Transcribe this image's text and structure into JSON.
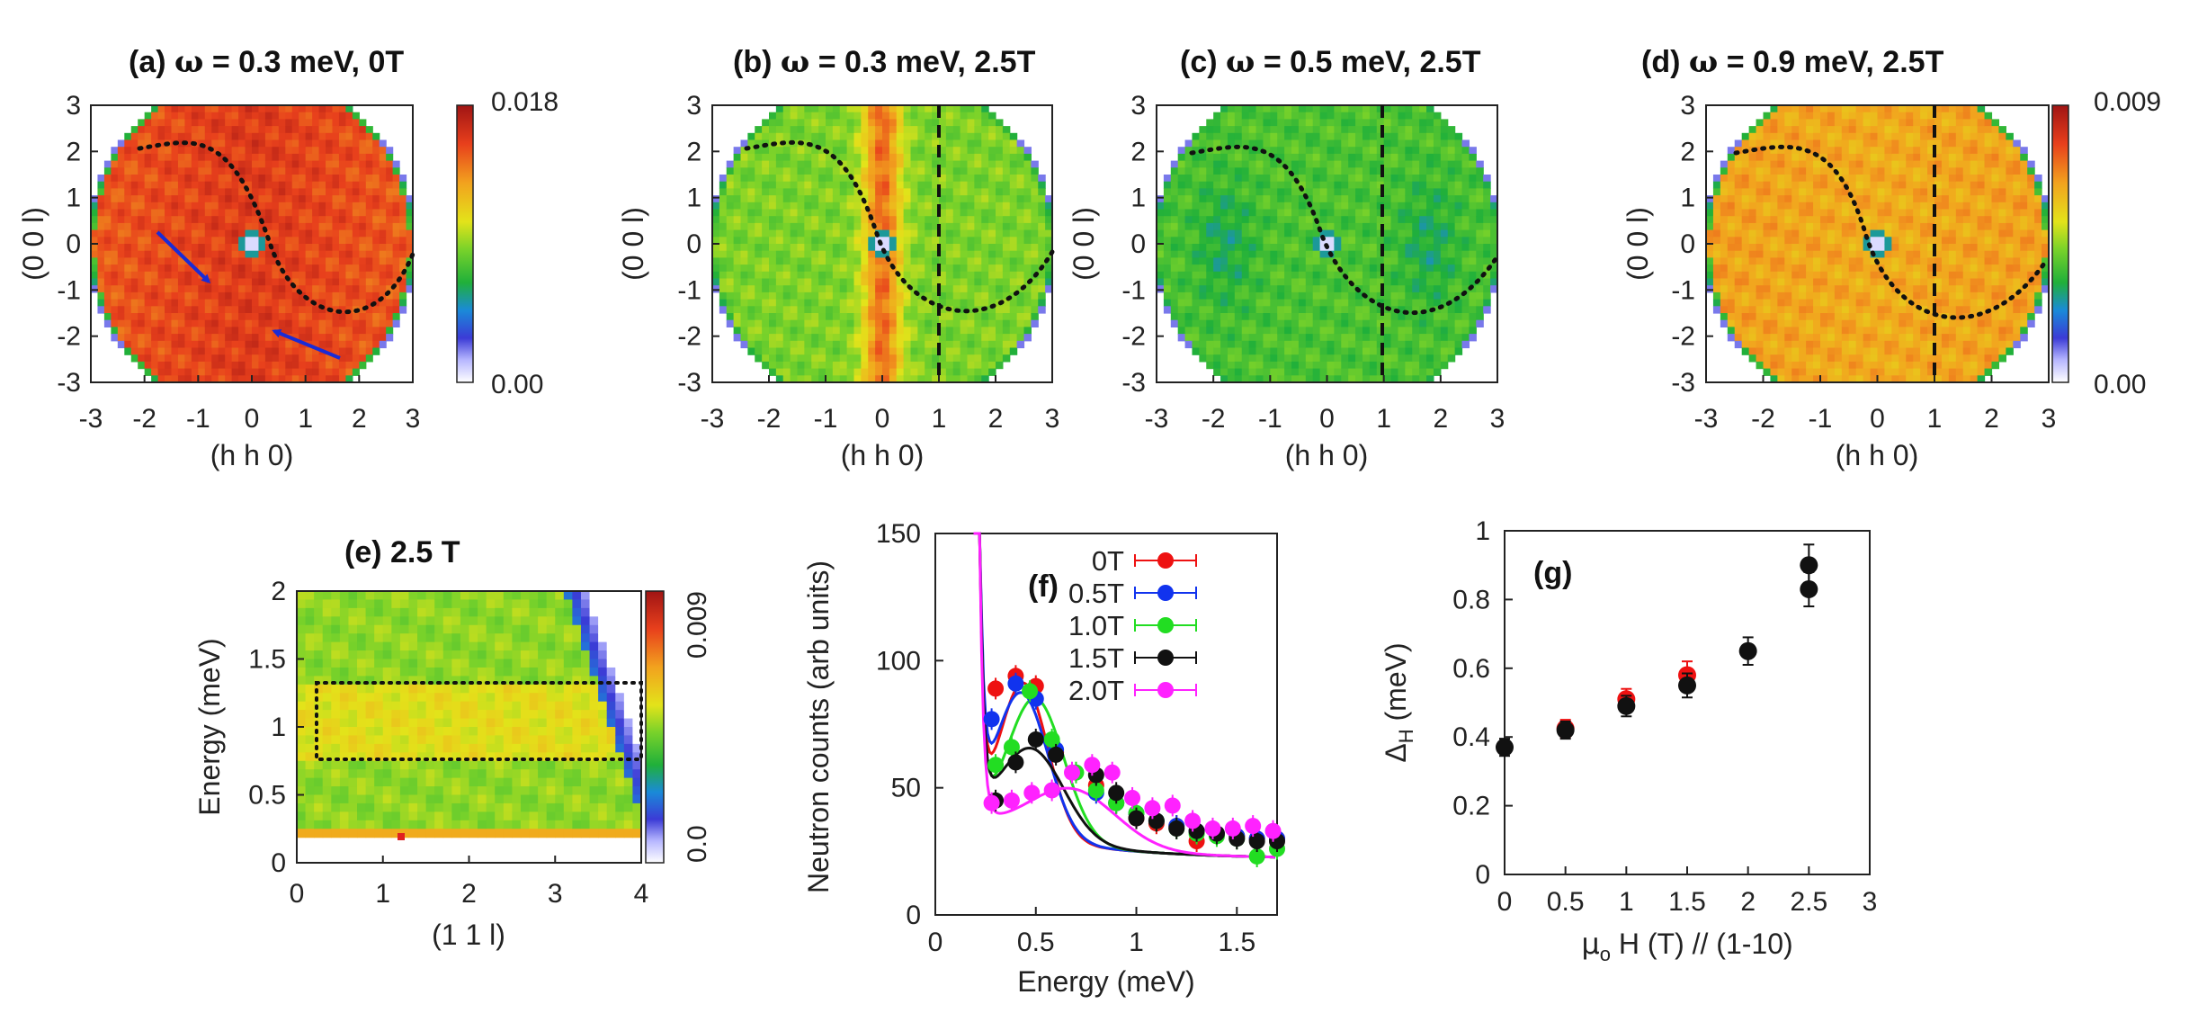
{
  "chart_data": [
    {
      "id": "a",
      "type": "heatmap",
      "title_prefix": "(a)",
      "title_omega": "ω",
      "title_rest": "= 0.3 meV, 0T",
      "xlabel": "(h h 0)",
      "ylabel": "(0 0 l)",
      "xlim": [
        -3,
        3
      ],
      "ylim": [
        -3,
        3
      ],
      "xticks": [
        "-3",
        "-2",
        "-1",
        "0",
        "1",
        "2",
        "3"
      ],
      "yticks": [
        "3",
        "2",
        "1",
        "0",
        "-1",
        "-2",
        "-3"
      ],
      "colorbar": {
        "max_label": "0.018",
        "min_label": "0.00"
      },
      "dominant_level": 0.82,
      "annotations": [
        "dotted S-curve",
        "two blue arrows"
      ]
    },
    {
      "id": "b",
      "type": "heatmap",
      "title_prefix": "(b)",
      "title_omega": "ω",
      "title_rest": "= 0.3 meV, 2.5T",
      "xlabel": "(h h 0)",
      "ylabel": "(0 0 l)",
      "xlim": [
        -3,
        3
      ],
      "ylim": [
        -3,
        3
      ],
      "xticks": [
        "-3",
        "-2",
        "-1",
        "0",
        "1",
        "2",
        "3"
      ],
      "yticks": [
        "3",
        "2",
        "1",
        "0",
        "-1",
        "-2",
        "-3"
      ],
      "dominant_level": 0.48,
      "cut_line_h": 1,
      "annotations": [
        "dotted S-curve",
        "dashed line at h=1"
      ]
    },
    {
      "id": "c",
      "type": "heatmap",
      "title_prefix": "(c)",
      "title_omega": "ω",
      "title_rest": "= 0.5 meV, 2.5T",
      "xlabel": "(h h 0)",
      "ylabel": "(0 0 l)",
      "xlim": [
        -3,
        3
      ],
      "ylim": [
        -3,
        3
      ],
      "xticks": [
        "-3",
        "-2",
        "-1",
        "0",
        "1",
        "2",
        "3"
      ],
      "yticks": [
        "3",
        "2",
        "1",
        "0",
        "-1",
        "-2",
        "-3"
      ],
      "dominant_level": 0.42,
      "cut_line_h": 1,
      "annotations": [
        "dotted S-curve",
        "dashed line at h=1"
      ]
    },
    {
      "id": "d",
      "type": "heatmap",
      "title_prefix": "(d)",
      "title_omega": "ω",
      "title_rest": "= 0.9 meV, 2.5T",
      "xlabel": "(h h 0)",
      "ylabel": "(0 0 l)",
      "xlim": [
        -3,
        3
      ],
      "ylim": [
        -3,
        3
      ],
      "xticks": [
        "-3",
        "-2",
        "-1",
        "0",
        "1",
        "2",
        "3"
      ],
      "yticks": [
        "3",
        "2",
        "1",
        "0",
        "-1",
        "-2",
        "-3"
      ],
      "colorbar": {
        "max_label": "0.009",
        "min_label": "0.00"
      },
      "dominant_level": 0.7,
      "cut_line_h": 1,
      "annotations": [
        "dotted S-curve",
        "dashed line at h=1"
      ]
    },
    {
      "id": "e",
      "type": "heatmap",
      "title": "(e)   2.5 T",
      "xlabel": "(1 1 l)",
      "ylabel": "Energy (meV)",
      "xlim": [
        0,
        4
      ],
      "ylim": [
        0,
        2
      ],
      "xticks": [
        "0",
        "1",
        "2",
        "3",
        "4"
      ],
      "yticks": [
        "2",
        "1.5",
        "1",
        "0.5",
        "0"
      ],
      "colorbar": {
        "max_label": "0.009",
        "min_label": "0.0"
      },
      "dominant_level": 0.5,
      "highlight_box": {
        "x": [
          0.25,
          4.0
        ],
        "y": [
          0.78,
          1.32
        ]
      }
    },
    {
      "id": "f",
      "type": "line",
      "title": "(f)",
      "xlabel": "Energy (meV)",
      "ylabel": "Neutron counts (arb units)",
      "xlim": [
        0,
        1.7
      ],
      "ylim": [
        0,
        150
      ],
      "xticks": [
        "0",
        "0.5",
        "1",
        "1.5"
      ],
      "yticks": [
        "150",
        "100",
        "50",
        "0"
      ],
      "series": [
        {
          "name": "0T",
          "color": "#ee1111",
          "x": [
            0.3,
            0.4,
            0.5,
            0.6,
            0.8,
            0.9,
            1.0,
            1.1,
            1.2,
            1.3,
            1.4,
            1.5,
            1.6,
            1.7
          ],
          "y": [
            89,
            94,
            90,
            64,
            51,
            44,
            38,
            36,
            35,
            29,
            32,
            31,
            30,
            30
          ]
        },
        {
          "name": "0.5T",
          "color": "#1133ee",
          "x": [
            0.28,
            0.4,
            0.5,
            0.6,
            0.8,
            0.9,
            1.0,
            1.1,
            1.2,
            1.3,
            1.4,
            1.5,
            1.6,
            1.7
          ],
          "y": [
            77,
            91,
            85,
            65,
            48,
            44,
            40,
            37,
            35,
            33,
            32,
            31,
            30,
            30
          ]
        },
        {
          "name": "1.0T",
          "color": "#22dd22",
          "x": [
            0.3,
            0.38,
            0.47,
            0.58,
            0.7,
            0.8,
            0.9,
            1.0,
            1.1,
            1.2,
            1.3,
            1.4,
            1.5,
            1.6,
            1.7
          ],
          "y": [
            59,
            66,
            88,
            69,
            56,
            49,
            44,
            40,
            37,
            34,
            32,
            31,
            30,
            23,
            26
          ]
        },
        {
          "name": "1.5T",
          "color": "#111111",
          "x": [
            0.3,
            0.4,
            0.5,
            0.6,
            0.8,
            0.9,
            1.0,
            1.1,
            1.2,
            1.3,
            1.4,
            1.5,
            1.6,
            1.7
          ],
          "y": [
            45,
            60,
            69,
            63,
            55,
            48,
            38,
            37,
            34,
            33,
            32,
            30,
            29,
            29
          ]
        },
        {
          "name": "2.0T",
          "color": "#ff22ff",
          "x": [
            0.28,
            0.38,
            0.48,
            0.58,
            0.68,
            0.78,
            0.88,
            0.98,
            1.08,
            1.18,
            1.28,
            1.38,
            1.48,
            1.58,
            1.68
          ],
          "y": [
            44,
            45,
            48,
            49,
            56,
            59,
            56,
            46,
            42,
            43,
            37,
            34,
            34,
            35,
            33
          ]
        }
      ]
    },
    {
      "id": "g",
      "type": "scatter",
      "title": "(g)",
      "xlabel_mu": "μ",
      "xlabel_sub": "o",
      "xlabel_rest": " H (T) // (1-10)",
      "ylabel_delta": "Δ",
      "ylabel_sub": "H",
      "ylabel_rest": " (meV)",
      "xlim": [
        0,
        3
      ],
      "ylim": [
        0,
        1
      ],
      "xticks": [
        "0",
        "0.5",
        "1",
        "1.5",
        "2",
        "2.5",
        "3"
      ],
      "yticks": [
        "1",
        "0.8",
        "0.6",
        "0.4",
        "0.2",
        "0"
      ],
      "series": [
        {
          "name": "red",
          "color": "#ee1111",
          "x": [
            0.5,
            1.0,
            1.5
          ],
          "y": [
            0.425,
            0.51,
            0.58
          ],
          "err": [
            0.025,
            0.03,
            0.04
          ]
        },
        {
          "name": "black",
          "color": "#111111",
          "x": [
            0,
            0.5,
            1.0,
            1.5,
            2.0,
            2.5,
            2.5
          ],
          "y": [
            0.37,
            0.42,
            0.49,
            0.55,
            0.65,
            0.9,
            0.83
          ],
          "err": [
            0.025,
            0.025,
            0.03,
            0.035,
            0.04,
            0.06,
            0.05
          ]
        }
      ]
    }
  ]
}
